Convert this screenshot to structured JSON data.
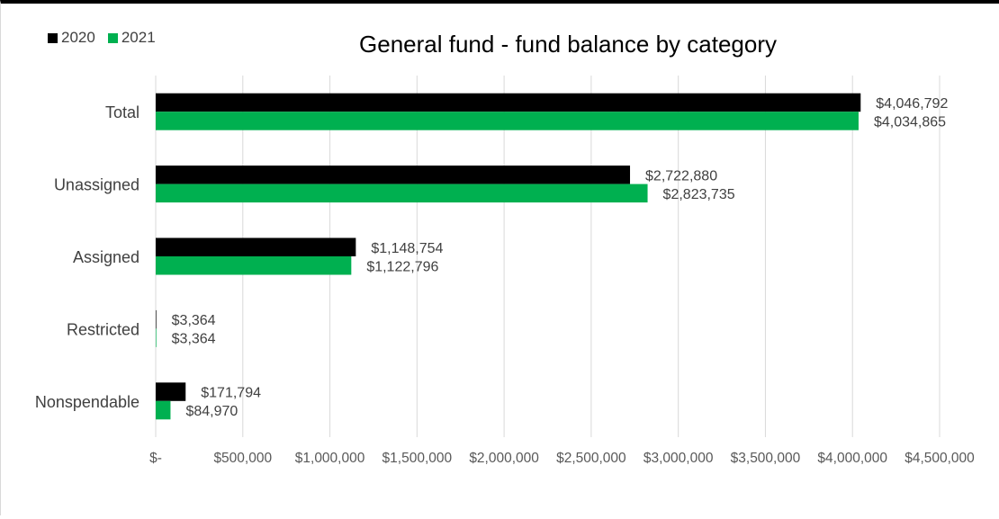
{
  "chart_data": {
    "type": "bar",
    "orientation": "horizontal",
    "title": "General fund - fund balance by category",
    "categories": [
      "Total",
      "Unassigned",
      "Assigned",
      "Restricted",
      "Nonspendable"
    ],
    "series": [
      {
        "name": "2020",
        "color": "#000000",
        "values": [
          4046792,
          2722880,
          1148754,
          3364,
          171794
        ],
        "labels": [
          "$4,046,792",
          "$2,722,880",
          "$1,148,754",
          "$3,364",
          "$171,794"
        ]
      },
      {
        "name": "2021",
        "color": "#00b050",
        "values": [
          4034865,
          2823735,
          1122796,
          3364,
          84970
        ],
        "labels": [
          "$4,034,865",
          "$2,823,735",
          "$1,122,796",
          "$3,364",
          "$84,970"
        ]
      }
    ],
    "xlim": [
      0,
      4500000
    ],
    "x_ticks": [
      0,
      500000,
      1000000,
      1500000,
      2000000,
      2500000,
      3000000,
      3500000,
      4000000,
      4500000
    ],
    "x_tick_labels": [
      "$-",
      "$500,000",
      "$1,000,000",
      "$1,500,000",
      "$2,000,000",
      "$2,500,000",
      "$3,000,000",
      "$3,500,000",
      "$4,000,000",
      "$4,500,000"
    ],
    "grid": "vertical",
    "legend_position": "top-left"
  }
}
